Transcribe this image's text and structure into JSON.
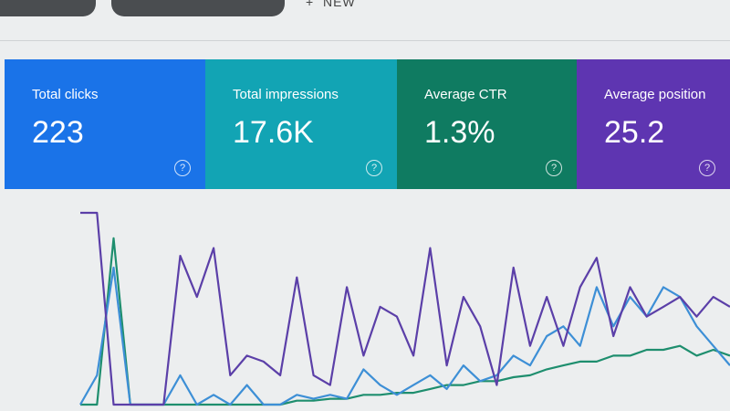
{
  "toolbar": {
    "new_button": "NEW"
  },
  "cards": [
    {
      "label": "Total clicks",
      "value": "223",
      "color": "#1a73e8"
    },
    {
      "label": "Total impressions",
      "value": "17.6K",
      "color": "#12a4b4"
    },
    {
      "label": "Average CTR",
      "value": "1.3%",
      "color": "#0f7b61"
    },
    {
      "label": "Average position",
      "value": "25.2",
      "color": "#5e35b1"
    }
  ],
  "chart": {
    "type": "line",
    "series": [
      {
        "color": "#1e8e6e",
        "values": [
          0,
          0,
          85,
          0,
          0,
          0,
          0,
          0,
          0,
          0,
          0,
          0,
          0,
          2,
          2,
          3,
          3,
          5,
          5,
          6,
          6,
          8,
          10,
          10,
          12,
          12,
          14,
          15,
          18,
          20,
          22,
          22,
          25,
          25,
          28,
          28,
          30,
          25,
          28,
          25
        ]
      },
      {
        "color": "#3d8fd6",
        "values": [
          0,
          15,
          70,
          0,
          0,
          0,
          15,
          0,
          5,
          0,
          10,
          0,
          0,
          5,
          3,
          5,
          3,
          18,
          10,
          5,
          10,
          15,
          8,
          20,
          12,
          15,
          25,
          20,
          35,
          40,
          30,
          60,
          40,
          55,
          45,
          60,
          55,
          40,
          30,
          20
        ]
      },
      {
        "color": "#5b3fa8",
        "values": [
          98,
          98,
          0,
          0,
          0,
          0,
          76,
          55,
          80,
          15,
          25,
          22,
          15,
          65,
          15,
          10,
          60,
          25,
          50,
          45,
          25,
          80,
          20,
          55,
          40,
          10,
          70,
          30,
          55,
          30,
          60,
          75,
          35,
          60,
          45,
          50,
          55,
          45,
          55,
          50
        ]
      }
    ]
  }
}
